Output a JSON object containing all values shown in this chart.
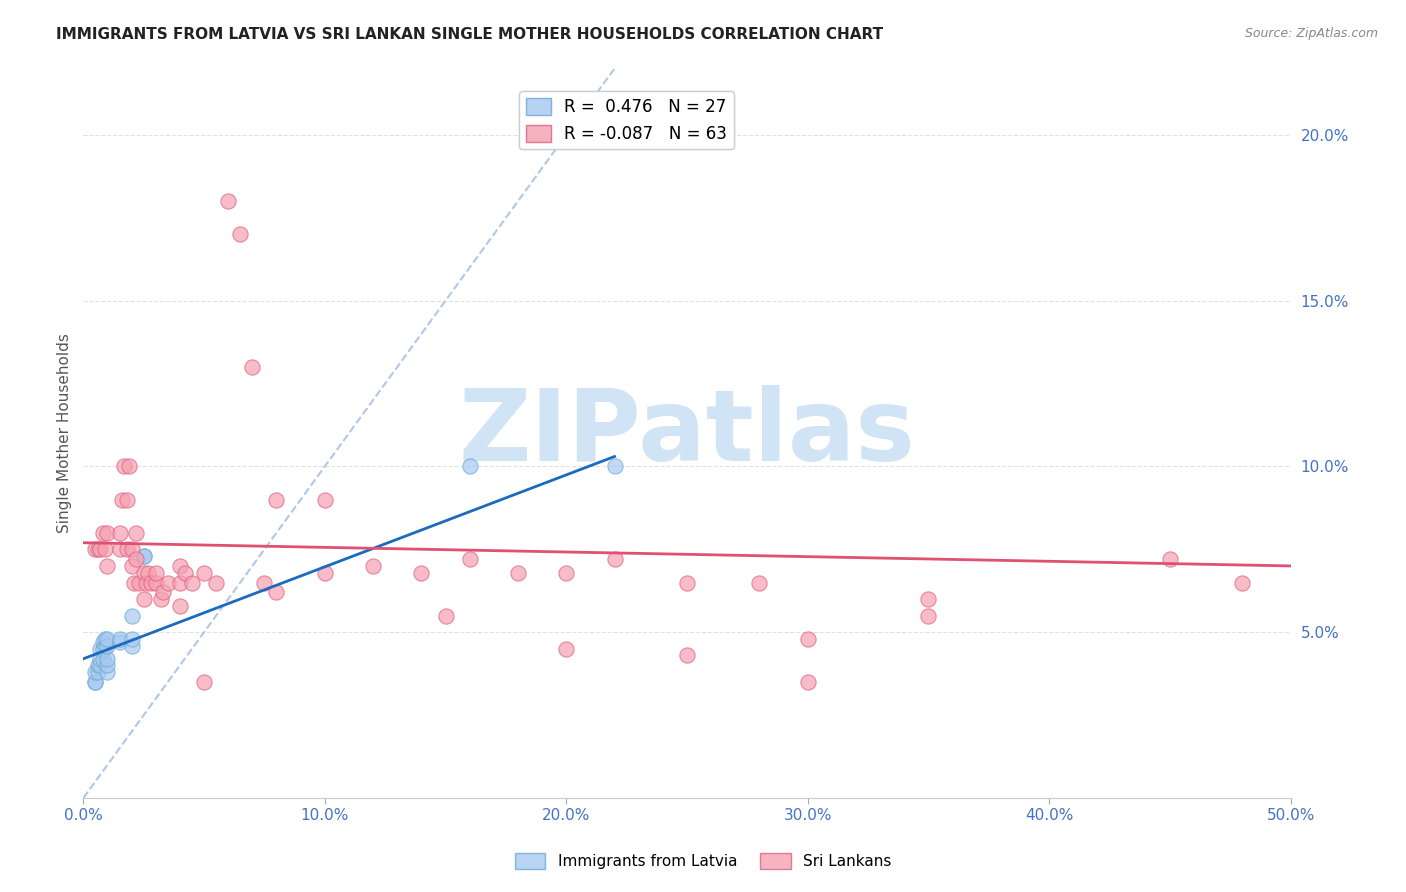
{
  "title": "IMMIGRANTS FROM LATVIA VS SRI LANKAN SINGLE MOTHER HOUSEHOLDS CORRELATION CHART",
  "source": "Source: ZipAtlas.com",
  "ylabel": "Single Mother Households",
  "xlabel": "",
  "xlim": [
    0,
    0.5
  ],
  "ylim": [
    0,
    0.22
  ],
  "xticks": [
    0.0,
    0.1,
    0.2,
    0.3,
    0.4,
    0.5
  ],
  "yticks_right": [
    0.05,
    0.1,
    0.15,
    0.2
  ],
  "ytick_labels_right": [
    "5.0%",
    "10.0%",
    "15.0%",
    "20.0%"
  ],
  "xtick_labels": [
    "0.0%",
    "10.0%",
    "20.0%",
    "30.0%",
    "40.0%",
    "50.0%"
  ],
  "legend_entries": [
    {
      "label": "R =  0.476   N = 27",
      "color": "#a8c8f0"
    },
    {
      "label": "R = -0.087   N = 63",
      "color": "#f5a0b0"
    }
  ],
  "legend_labels_bottom": [
    "Immigrants from Latvia",
    "Sri Lankans"
  ],
  "scatter_latvia": {
    "color": "#a8c8f0",
    "edge_color": "#6aaad4",
    "x": [
      0.005,
      0.005,
      0.005,
      0.006,
      0.006,
      0.007,
      0.007,
      0.007,
      0.008,
      0.008,
      0.008,
      0.009,
      0.009,
      0.01,
      0.01,
      0.01,
      0.01,
      0.01,
      0.015,
      0.015,
      0.02,
      0.02,
      0.02,
      0.025,
      0.025,
      0.16,
      0.22
    ],
    "y": [
      0.035,
      0.035,
      0.038,
      0.038,
      0.04,
      0.04,
      0.042,
      0.045,
      0.042,
      0.045,
      0.047,
      0.046,
      0.048,
      0.038,
      0.04,
      0.042,
      0.046,
      0.048,
      0.047,
      0.048,
      0.046,
      0.048,
      0.055,
      0.073,
      0.073,
      0.1,
      0.1
    ]
  },
  "scatter_srilanka": {
    "color": "#f5a0b0",
    "edge_color": "#e06080",
    "x": [
      0.005,
      0.006,
      0.007,
      0.008,
      0.009,
      0.01,
      0.01,
      0.015,
      0.015,
      0.016,
      0.017,
      0.018,
      0.018,
      0.019,
      0.02,
      0.02,
      0.021,
      0.022,
      0.022,
      0.023,
      0.025,
      0.025,
      0.026,
      0.027,
      0.028,
      0.03,
      0.03,
      0.032,
      0.033,
      0.035,
      0.04,
      0.04,
      0.042,
      0.045,
      0.05,
      0.055,
      0.06,
      0.065,
      0.07,
      0.075,
      0.08,
      0.1,
      0.12,
      0.14,
      0.16,
      0.18,
      0.2,
      0.22,
      0.25,
      0.28,
      0.3,
      0.35,
      0.45,
      0.48,
      0.25,
      0.3,
      0.35,
      0.2,
      0.15,
      0.1,
      0.08,
      0.05,
      0.04
    ],
    "y": [
      0.075,
      0.075,
      0.075,
      0.08,
      0.075,
      0.07,
      0.08,
      0.08,
      0.075,
      0.09,
      0.1,
      0.075,
      0.09,
      0.1,
      0.075,
      0.07,
      0.065,
      0.072,
      0.08,
      0.065,
      0.068,
      0.06,
      0.065,
      0.068,
      0.065,
      0.065,
      0.068,
      0.06,
      0.062,
      0.065,
      0.065,
      0.07,
      0.068,
      0.065,
      0.068,
      0.065,
      0.18,
      0.17,
      0.13,
      0.065,
      0.09,
      0.068,
      0.07,
      0.068,
      0.072,
      0.068,
      0.068,
      0.072,
      0.065,
      0.065,
      0.035,
      0.055,
      0.072,
      0.065,
      0.043,
      0.048,
      0.06,
      0.045,
      0.055,
      0.09,
      0.062,
      0.035,
      0.058
    ]
  },
  "line_latvia": {
    "color": "#1a6abf",
    "x_start": 0.0,
    "y_start": 0.042,
    "x_end": 0.22,
    "y_end": 0.103
  },
  "line_srilanka": {
    "color": "#e05070",
    "x_start": 0.0,
    "y_start": 0.077,
    "x_end": 0.5,
    "y_end": 0.07
  },
  "diagonal_line": {
    "color": "#b0c8e8",
    "x_start": 0.0,
    "y_start": 0.0,
    "x_end": 0.22,
    "y_end": 0.22
  },
  "watermark": "ZIPatlas",
  "watermark_color": "#d0e4f5",
  "background_color": "#ffffff",
  "title_fontsize": 11,
  "axis_color": "#4472c4",
  "grid_color": "#e0e0e0"
}
